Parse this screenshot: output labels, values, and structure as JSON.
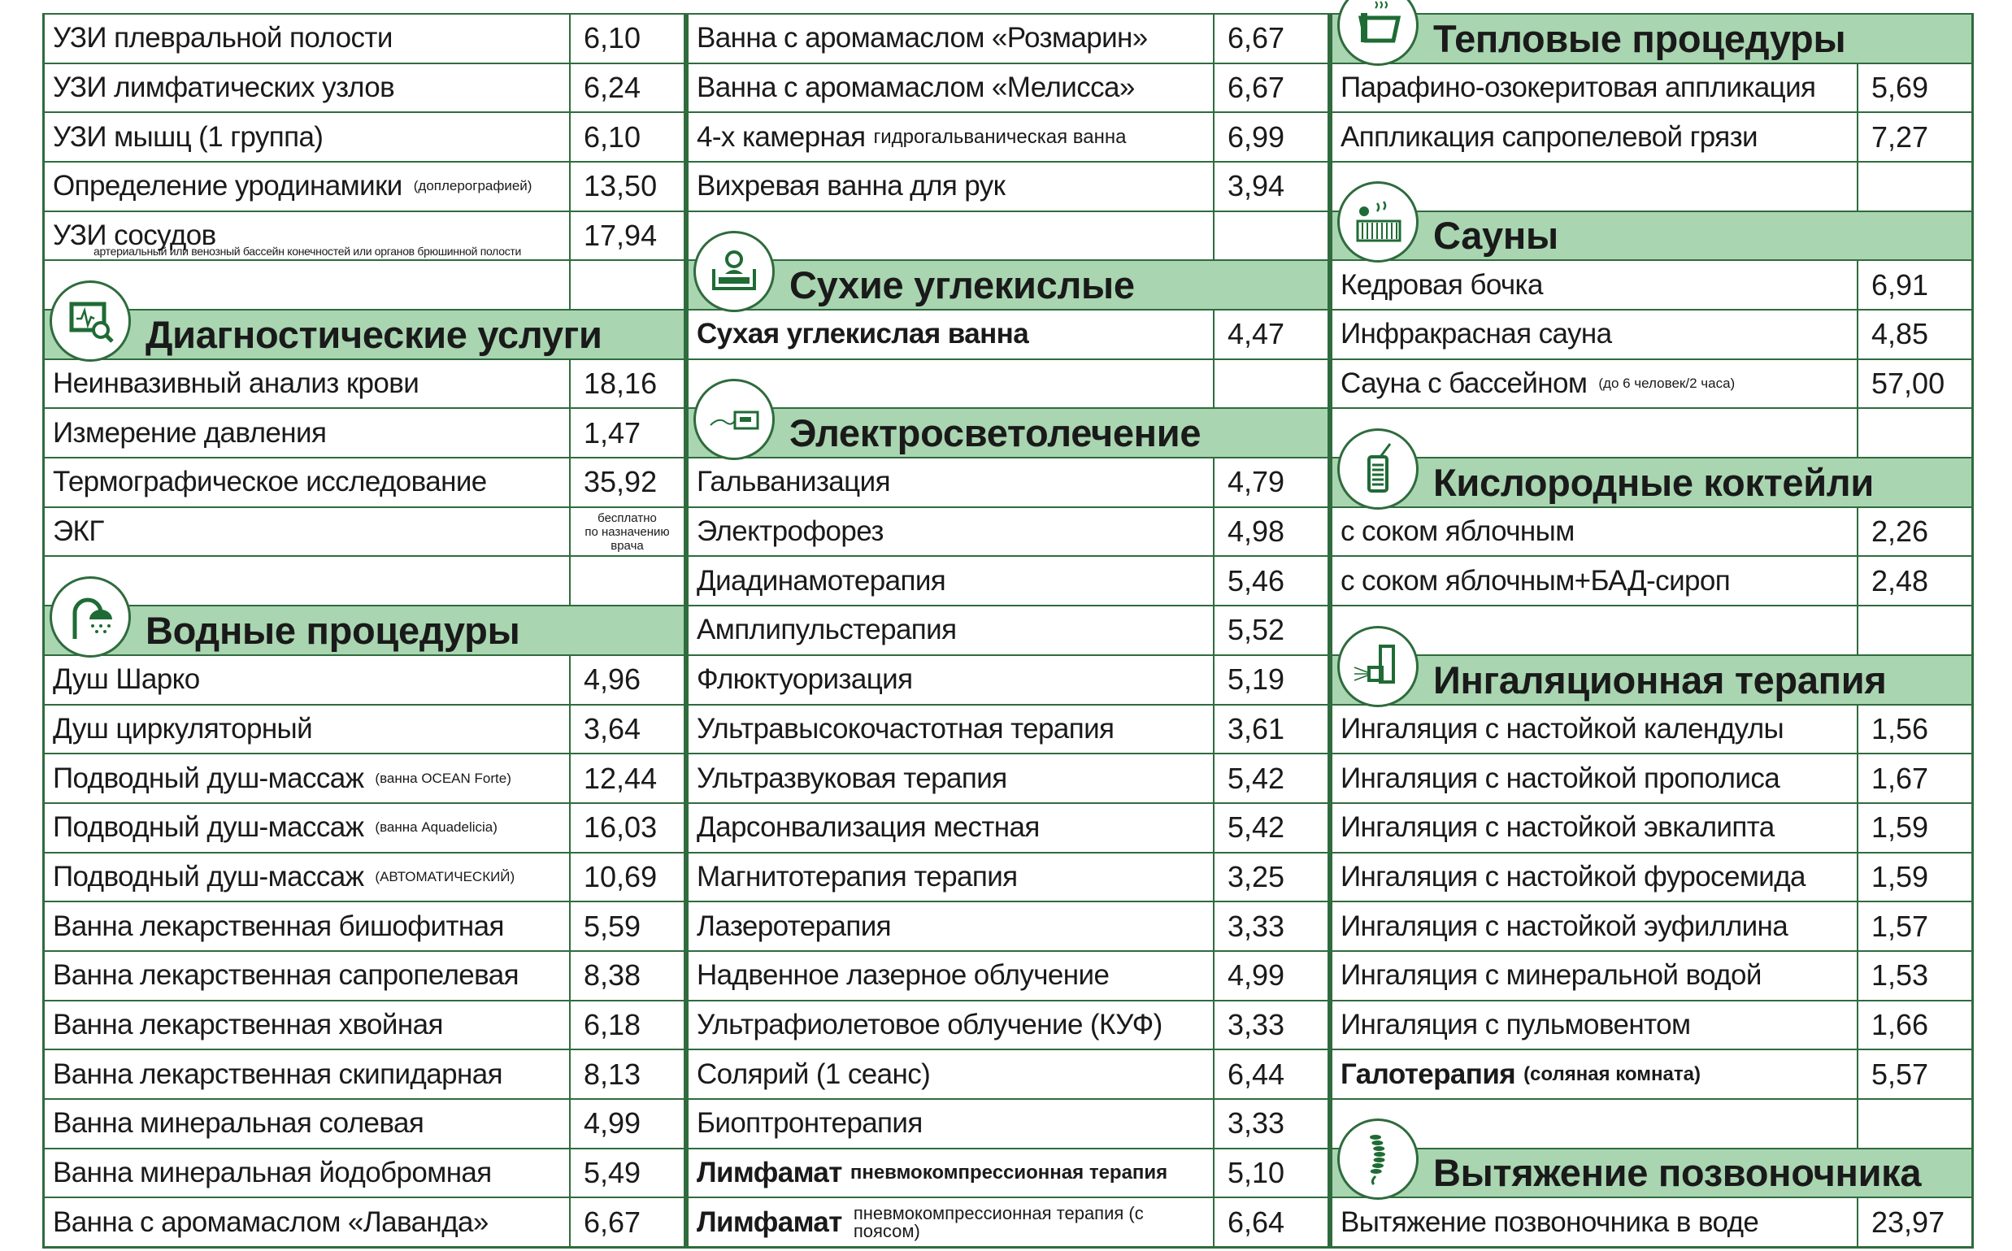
{
  "colors": {
    "border": "#2f6b3d",
    "header_bg": "#a9d5b1",
    "icon": "#1f6b35"
  },
  "columns": [
    {
      "rows": [
        {
          "type": "item",
          "name": "УЗИ плевральной полости",
          "price": "6,10"
        },
        {
          "type": "item",
          "name": "УЗИ лимфатических узлов",
          "price": "6,24"
        },
        {
          "type": "item",
          "name": "УЗИ мышц (1 группа)",
          "price": "6,10"
        },
        {
          "type": "item",
          "name": "Определение уродинамики",
          "note": "(доплерографией)",
          "price": "13,50"
        },
        {
          "type": "item",
          "name": "УЗИ сосудов",
          "note_below": "артериальный или венозный бассейн конечностей или органов брюшинной полости",
          "price": "17,94"
        },
        {
          "type": "blank"
        },
        {
          "type": "header",
          "title": "Диагностические услуги",
          "icon": "diagnostic-monitor-icon"
        },
        {
          "type": "item",
          "name": "Неинвазивный анализ крови",
          "price": "18,16"
        },
        {
          "type": "item",
          "name": "Измерение давления",
          "price": "1,47"
        },
        {
          "type": "item",
          "name": "Термографическое исследование",
          "price": "35,92"
        },
        {
          "type": "item",
          "name": "ЭКГ",
          "price_note": [
            "бесплатно",
            "по назначению",
            "врача"
          ]
        },
        {
          "type": "blank"
        },
        {
          "type": "header",
          "title": "Водные процедуры",
          "icon": "shower-icon"
        },
        {
          "type": "item",
          "name": "Душ Шарко",
          "price": "4,96"
        },
        {
          "type": "item",
          "name": "Душ циркуляторный",
          "price": "3,64"
        },
        {
          "type": "item",
          "name": "Подводный душ-массаж",
          "note": "(ванна OCEAN Forte)",
          "price": "12,44"
        },
        {
          "type": "item",
          "name": "Подводный душ-массаж",
          "note": "(ванна Aquadelicia)",
          "price": "16,03"
        },
        {
          "type": "item",
          "name": "Подводный душ-массаж",
          "note": "(АВТОМАТИЧЕСКИЙ)",
          "price": "10,69"
        },
        {
          "type": "item",
          "name": "Ванна лекарственная бишофитная",
          "price": "5,59"
        },
        {
          "type": "item",
          "name": "Ванна лекарственная сапропелевая",
          "price": "8,38"
        },
        {
          "type": "item",
          "name": "Ванна лекарственная хвойная",
          "price": "6,18"
        },
        {
          "type": "item",
          "name": "Ванна лекарственная скипидарная",
          "price": "8,13"
        },
        {
          "type": "item",
          "name": "Ванна минеральная солевая",
          "price": "4,99"
        },
        {
          "type": "item",
          "name": "Ванна минеральная йодобромная",
          "price": "5,49"
        },
        {
          "type": "item",
          "name": "Ванна с аромамаслом «Лаванда»",
          "price": "6,67"
        }
      ]
    },
    {
      "rows": [
        {
          "type": "item",
          "name": "Ванна с аромамаслом «Розмарин»",
          "price": "6,67"
        },
        {
          "type": "item",
          "name": "Ванна с аромамаслом «Мелисса»",
          "price": "6,67"
        },
        {
          "type": "item",
          "name": "4-х камерная",
          "note": "гидрогальваническая ванна",
          "note_style": "big",
          "price": "6,99"
        },
        {
          "type": "item",
          "name": "Вихревая ванна для рук",
          "price": "3,94"
        },
        {
          "type": "blank"
        },
        {
          "type": "header",
          "title": "Сухие углекислые",
          "icon": "dry-bath-icon"
        },
        {
          "type": "item",
          "name": "Сухая углекислая ванна",
          "bold": true,
          "price": "4,47"
        },
        {
          "type": "blank"
        },
        {
          "type": "header",
          "title": "Электросветолечение",
          "icon": "electrotherapy-device-icon"
        },
        {
          "type": "item",
          "name": "Гальванизация",
          "price": "4,79"
        },
        {
          "type": "item",
          "name": "Электрофорез",
          "price": "4,98"
        },
        {
          "type": "item",
          "name": "Диадинамотерапия",
          "price": "5,46"
        },
        {
          "type": "item",
          "name": "Амплипульстерапия",
          "price": "5,52"
        },
        {
          "type": "item",
          "name": "Флюктуоризация",
          "price": "5,19"
        },
        {
          "type": "item",
          "name": "Ультравысокочастотная терапия",
          "price": "3,61"
        },
        {
          "type": "item",
          "name": "Ультразвуковая терапия",
          "price": "5,42"
        },
        {
          "type": "item",
          "name": "Дарсонвализация местная",
          "price": "5,42"
        },
        {
          "type": "item",
          "name": "Магнитотерапия терапия",
          "price": "3,25"
        },
        {
          "type": "item",
          "name": "Лазеротерапия",
          "price": "3,33"
        },
        {
          "type": "item",
          "name": "Надвенное лазерное облучение",
          "price": "4,99"
        },
        {
          "type": "item",
          "name": "Ультрафиолетовое облучение (КУФ)",
          "price": "3,33"
        },
        {
          "type": "item",
          "name": "Солярий (1 сеанс)",
          "price": "6,44"
        },
        {
          "type": "item",
          "name": "Биоптронтерапия",
          "price": "3,33"
        },
        {
          "type": "item",
          "name": "Лимфамат",
          "bold": true,
          "note": "пневмокомпрессионная терапия",
          "note_style": "big",
          "price": "5,10"
        },
        {
          "type": "item",
          "name": "Лимфамат",
          "bold": true,
          "note": "пневмокомпрессионная терапия (с поясом)",
          "note_style": "two",
          "price": "6,64"
        }
      ]
    },
    {
      "rows": [
        {
          "type": "header",
          "title": "Тепловые процедуры",
          "icon": "hot-cup-icon"
        },
        {
          "type": "item",
          "name": "Парафино-озокеритовая аппликация",
          "price": "5,69"
        },
        {
          "type": "item",
          "name": "Аппликация сапропелевой грязи",
          "price": "7,27"
        },
        {
          "type": "blank"
        },
        {
          "type": "header",
          "title": "Сауны",
          "icon": "sauna-icon"
        },
        {
          "type": "item",
          "name": "Кедровая бочка",
          "price": "6,91"
        },
        {
          "type": "item",
          "name": "Инфракрасная сауна",
          "price": "4,85"
        },
        {
          "type": "item",
          "name": "Сауна с бассейном",
          "note": "(до 6 человек/2 часа)",
          "price": "57,00"
        },
        {
          "type": "blank"
        },
        {
          "type": "header",
          "title": "Кислородные коктейли",
          "icon": "oxygen-cocktail-icon"
        },
        {
          "type": "item",
          "name": "с соком яблочным",
          "price": "2,26"
        },
        {
          "type": "item",
          "name": "с соком яблочным+БАД-сироп",
          "price": "2,48"
        },
        {
          "type": "blank"
        },
        {
          "type": "header",
          "title": "Ингаляционная терапия",
          "icon": "inhaler-icon"
        },
        {
          "type": "item",
          "name": "Ингаляция с настойкой календулы",
          "price": "1,56"
        },
        {
          "type": "item",
          "name": "Ингаляция с настойкой прополиса",
          "price": "1,67"
        },
        {
          "type": "item",
          "name": "Ингаляция с настойкой эвкалипта",
          "price": "1,59"
        },
        {
          "type": "item",
          "name": "Ингаляция с настойкой фуросемида",
          "price": "1,59"
        },
        {
          "type": "item",
          "name": "Ингаляция с настойкой эуфиллина",
          "price": "1,57"
        },
        {
          "type": "item",
          "name": "Ингаляция с минеральной водой",
          "price": "1,53"
        },
        {
          "type": "item",
          "name": "Ингаляция с пульмовентом",
          "price": "1,66"
        },
        {
          "type": "item",
          "name": "Галотерапия",
          "bold": true,
          "note": "(соляная комната)",
          "note_style": "big",
          "price": "5,57"
        },
        {
          "type": "blank"
        },
        {
          "type": "header",
          "title": "Вытяжение позвоночника",
          "icon": "spine-icon"
        },
        {
          "type": "item",
          "name": "Вытяжение позвоночника в воде",
          "price": "23,97"
        }
      ]
    }
  ]
}
